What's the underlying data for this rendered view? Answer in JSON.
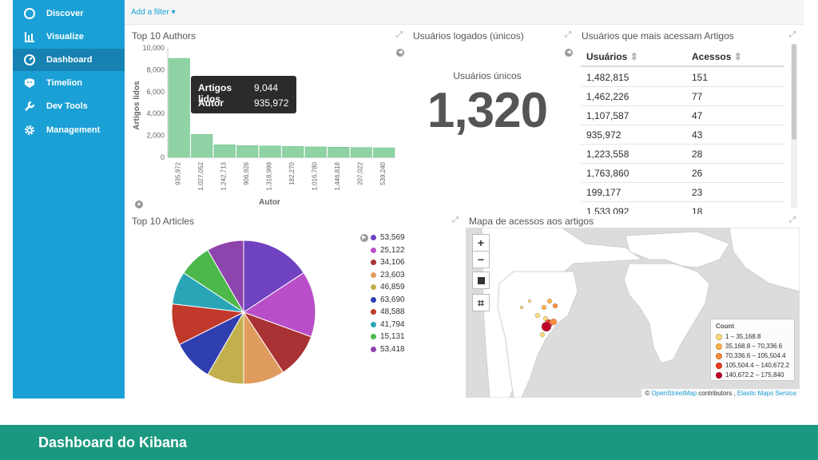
{
  "sidebar": {
    "items": [
      {
        "label": "Discover",
        "icon": "compass-icon"
      },
      {
        "label": "Visualize",
        "icon": "bar-chart-icon"
      },
      {
        "label": "Dashboard",
        "icon": "dashboard-icon",
        "active": true
      },
      {
        "label": "Timelion",
        "icon": "timelion-icon"
      },
      {
        "label": "Dev Tools",
        "icon": "wrench-icon"
      },
      {
        "label": "Management",
        "icon": "gear-icon"
      }
    ]
  },
  "topbar": {
    "add_filter": "Add a filter ▾"
  },
  "panels": {
    "authors": {
      "title": "Top 10 Authors"
    },
    "users_logged": {
      "title": "Usuários logados (únicos)",
      "label": "Usuários únicos",
      "value": "1,320"
    },
    "top_users": {
      "title": "Usuários que mais acessam Artigos",
      "columns": [
        "Usuários",
        "Acessos"
      ],
      "rows": [
        [
          "1,482,815",
          "151"
        ],
        [
          "1,462,226",
          "77"
        ],
        [
          "1,107,587",
          "47"
        ],
        [
          "935,972",
          "43"
        ],
        [
          "1,223,558",
          "28"
        ],
        [
          "1,763,860",
          "26"
        ],
        [
          "199,177",
          "23"
        ],
        [
          "1,533,092",
          "18"
        ]
      ]
    },
    "articles": {
      "title": "Top 10 Articles"
    },
    "map": {
      "title": "Mapa de acessos aos artigos",
      "legend_title": "Count",
      "legend": [
        {
          "label": "1 – 35,168.8",
          "color": "#fed976"
        },
        {
          "label": "35,168.8 – 70,336.6",
          "color": "#feb24c"
        },
        {
          "label": "70,336.6 – 105,504.4",
          "color": "#fd8d3c"
        },
        {
          "label": "105,504.4 – 140,672.2",
          "color": "#f03b20"
        },
        {
          "label": "140,672.2 – 175,840",
          "color": "#bd0026"
        }
      ],
      "attribution_prefix": "©",
      "attribution_osm": "OpenStreetMap",
      "attribution_mid": "contributors ,",
      "attribution_ems": "Elastic Maps Service"
    }
  },
  "tooltip": {
    "row1_label": "Artigos lidos",
    "row1_value": "9,044",
    "row2_label": "Autor",
    "row2_value": "935,972"
  },
  "footer": {
    "title": "Dashboard do Kibana"
  },
  "chart_data": [
    {
      "type": "bar",
      "title": "Top 10 Authors",
      "xlabel": "Autor",
      "ylabel": "Artigos lidos",
      "categories": [
        "935,972",
        "1,027,052",
        "1,242,713",
        "906,926",
        "1,318,999",
        "182,270",
        "1,016,780",
        "1,446,818",
        "207,022",
        "539,240"
      ],
      "values": [
        9044,
        2100,
        1150,
        1080,
        1040,
        1000,
        960,
        930,
        900,
        870
      ],
      "ylim": [
        0,
        10000
      ],
      "yticks": [
        "0",
        "2,000",
        "4,000",
        "6,000",
        "8,000",
        "10,000"
      ],
      "color": "#8fd3a5"
    },
    {
      "type": "pie",
      "title": "Top 10 Articles",
      "labels": [
        "53,569",
        "25,122",
        "34,106",
        "23,603",
        "46,859",
        "63,690",
        "48,588",
        "41,794",
        "15,131",
        "53,418"
      ],
      "values": [
        17,
        16,
        11,
        10,
        9,
        10,
        10,
        8,
        8,
        9
      ],
      "colors": [
        "#6f42c1",
        "#b94fc8",
        "#a83234",
        "#e09c5e",
        "#c2b04f",
        "#2f3fb0",
        "#c0392b",
        "#2aa5b8",
        "#4cb84a",
        "#8e44ad"
      ]
    }
  ]
}
